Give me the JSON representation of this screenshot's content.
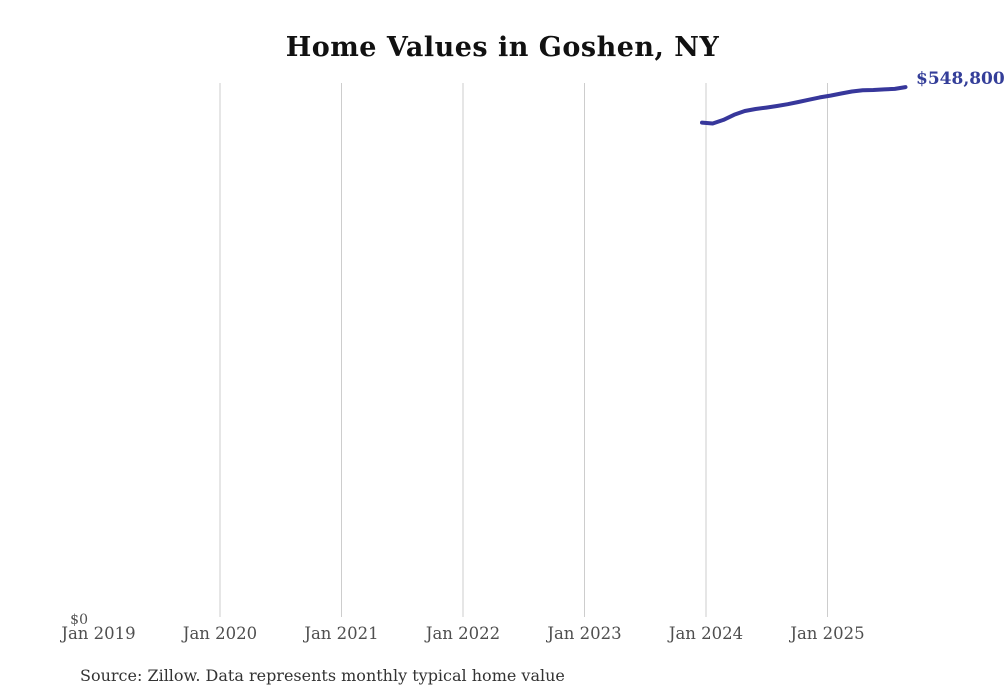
{
  "chart_data": {
    "type": "line",
    "title": "Home Values in Goshen, NY",
    "x": [
      "Jan 2024",
      "Feb 2024",
      "Mar 2024",
      "Apr 2024",
      "May 2024",
      "Jun 2024",
      "Jul 2024",
      "Aug 2024",
      "Sep 2024",
      "Oct 2024",
      "Nov 2024",
      "Dec 2024",
      "Jan 2025",
      "Feb 2025",
      "Mar 2025",
      "Apr 2025",
      "May 2025",
      "Jun 2025",
      "Jul 2025",
      "Aug 2025"
    ],
    "values": [
      512000,
      511100,
      514800,
      520100,
      524000,
      526100,
      527500,
      529200,
      531000,
      533300,
      535700,
      538100,
      540000,
      542100,
      544200,
      545400,
      545700,
      546400,
      546900,
      548800
    ],
    "x_ticks": [
      "Jan 2019",
      "Jan 2020",
      "Jan 2021",
      "Jan 2022",
      "Jan 2023",
      "Jan 2024",
      "Jan 2025"
    ],
    "y_ticks": [
      "$0"
    ],
    "ylim": [
      0,
      553000
    ],
    "grid": "vertical",
    "legend": "none",
    "end_label": "$548,800",
    "line_color": "#37379b",
    "end_label_color": "#343e99",
    "gridline_color": "#cdcdcd",
    "source": "Source: Zillow. Data represents monthly typical home value"
  }
}
